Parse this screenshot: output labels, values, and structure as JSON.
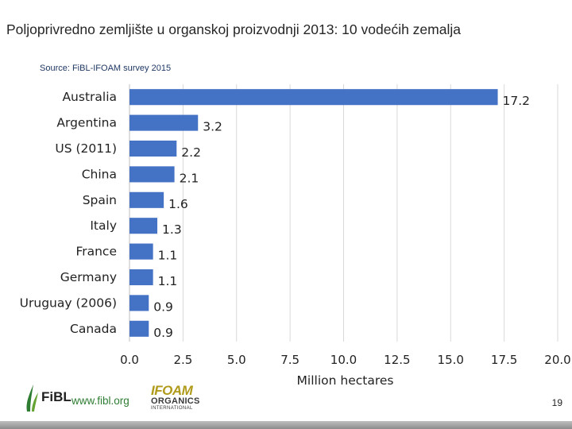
{
  "slide": {
    "title": "Poljoprivredno zemljište u organskoj proizvodnji 2013: 10 vodećih zemalja",
    "source": "Source: FiBL-IFOAM survey 2015",
    "page_number": "19"
  },
  "footer": {
    "fibl_text": "FiBL",
    "fibl_url": "www.fibl.org",
    "ifoam_line1": "IFOAM",
    "ifoam_line2": "ORGANICS",
    "ifoam_line3": "INTERNATIONAL"
  },
  "colors": {
    "bar": "#4472c4",
    "grid": "#d9d9d9",
    "axis": "#bfbfbf"
  },
  "chart_data": {
    "type": "bar",
    "orientation": "horizontal",
    "title": "Poljoprivredno zemljište u organskoj proizvodnji 2013: 10 vodećih zemalja",
    "xlabel": "Million hectares",
    "ylabel": "",
    "categories": [
      "Australia",
      "Argentina",
      "US (2011)",
      "China",
      "Spain",
      "Italy",
      "France",
      "Germany",
      "Uruguay (2006)",
      "Canada"
    ],
    "values": [
      17.2,
      3.2,
      2.2,
      2.1,
      1.6,
      1.3,
      1.1,
      1.1,
      0.9,
      0.9
    ],
    "value_labels": [
      "17.2",
      "3.2",
      "2.2",
      "2.1",
      "1.6",
      "1.3",
      "1.1",
      "1.1",
      "0.9",
      "0.9"
    ],
    "xlim": [
      0,
      20
    ],
    "xticks": [
      "0.0",
      "2.5",
      "5.0",
      "7.5",
      "10.0",
      "12.5",
      "15.0",
      "17.5",
      "20.0"
    ],
    "grid": true,
    "legend": "none"
  }
}
